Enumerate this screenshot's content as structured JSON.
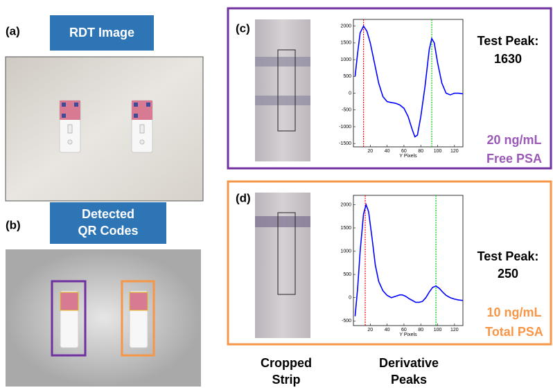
{
  "panels": {
    "a": {
      "label": "(a)",
      "title": "RDT Image"
    },
    "b": {
      "label": "(b)",
      "title_lines": [
        "Detected",
        "QR Codes"
      ]
    },
    "c": {
      "label": "(c)",
      "peak_label": "Test Peak:",
      "peak_value": 1630,
      "concentration": "20 ng/mL",
      "analyte": "Free PSA"
    },
    "d": {
      "label": "(d)",
      "peak_label": "Test Peak:",
      "peak_value": 250,
      "concentration": "10 ng/mL",
      "analyte": "Total PSA"
    }
  },
  "column_labels": [
    [
      "Cropped",
      "Strip"
    ],
    [
      "Derivative",
      "Peaks"
    ]
  ],
  "chart_data": [
    {
      "type": "line",
      "xlabel": "Y Pixels",
      "x": [
        2,
        5,
        8,
        12,
        16,
        20,
        25,
        30,
        35,
        40,
        45,
        50,
        55,
        60,
        65,
        70,
        73,
        76,
        80,
        85,
        90,
        93,
        96,
        100,
        105,
        110,
        115,
        120,
        125,
        130
      ],
      "series": [
        {
          "color": "#0000ff",
          "values": [
            500,
            1200,
            1800,
            2000,
            1850,
            1500,
            900,
            300,
            -100,
            -250,
            -280,
            -300,
            -350,
            -450,
            -700,
            -1100,
            -1300,
            -1250,
            -700,
            200,
            1300,
            1630,
            1500,
            900,
            300,
            0,
            -50,
            0,
            0,
            -20
          ]
        }
      ],
      "xlim": [
        0,
        130
      ],
      "ylim": [
        -1600,
        2200
      ],
      "xticks": [
        20,
        40,
        60,
        80,
        100,
        120
      ],
      "yticks": [
        -1500,
        -1000,
        -500,
        0,
        500,
        1000,
        1500,
        2000
      ],
      "vlines": [
        {
          "x": 12,
          "color": "#ff0000"
        },
        {
          "x": 93,
          "color": "#00cc00"
        }
      ]
    },
    {
      "type": "line",
      "xlabel": "Y Pixels",
      "x": [
        2,
        5,
        8,
        12,
        15,
        18,
        22,
        26,
        30,
        35,
        40,
        45,
        50,
        55,
        58,
        62,
        66,
        70,
        74,
        78,
        82,
        86,
        90,
        94,
        98,
        102,
        106,
        110,
        115,
        120,
        125,
        130
      ],
      "series": [
        {
          "color": "#0000ff",
          "values": [
            -400,
            200,
            1000,
            1800,
            2000,
            1850,
            1300,
            700,
            350,
            150,
            50,
            0,
            30,
            60,
            60,
            30,
            -20,
            -60,
            -100,
            -100,
            -80,
            0,
            120,
            220,
            250,
            200,
            120,
            50,
            0,
            -30,
            -50,
            -60
          ]
        }
      ],
      "xlim": [
        0,
        130
      ],
      "ylim": [
        -600,
        2200
      ],
      "xticks": [
        20,
        40,
        60,
        80,
        100,
        120
      ],
      "yticks": [
        -500,
        0,
        500,
        1000,
        1500,
        2000
      ],
      "vlines": [
        {
          "x": 14,
          "color": "#ff0000"
        },
        {
          "x": 98,
          "color": "#00cc00"
        }
      ]
    }
  ]
}
